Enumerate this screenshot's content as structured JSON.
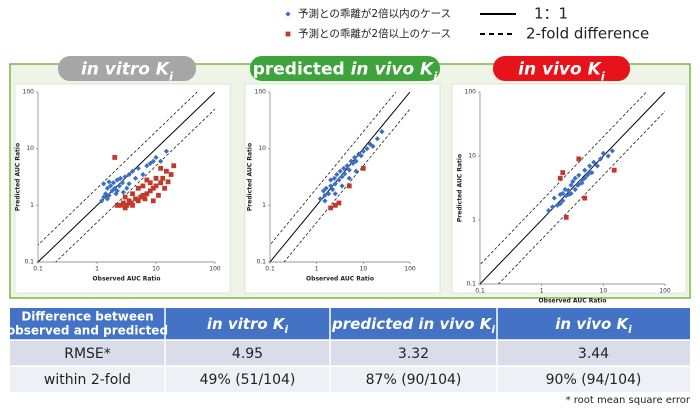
{
  "legend": {
    "items": [
      {
        "label": "予測との乖離が2倍以内のケース",
        "marker": "diamond",
        "color": "#3a6fc4"
      },
      {
        "label": "予測との乖離が2倍以上のケース",
        "marker": "square",
        "color": "#c0392b"
      },
      {
        "label": "1：1",
        "line": "solid",
        "color": "#000000"
      },
      {
        "label": "2-fold difference",
        "line": "dashed",
        "color": "#000000"
      }
    ]
  },
  "chart_data": [
    {
      "type": "scatter",
      "title_parts": [
        {
          "text": "in vitro K",
          "style": "italic"
        },
        {
          "text": "i",
          "style": "italic-sub"
        }
      ],
      "title_color": "#a6a6a6",
      "x_label": "Observed AUC Ratio",
      "y_label": "Predicted AUC Ratio",
      "log_scale": true,
      "grid": false,
      "xlim": [
        0.1,
        100
      ],
      "ylim": [
        0.1,
        100
      ],
      "xticks": [
        0.1,
        1,
        10,
        100
      ],
      "yticks": [
        0.1,
        1,
        10,
        100
      ],
      "reference_lines": [
        {
          "factor": 1,
          "style": "solid"
        },
        {
          "factor": 2,
          "style": "dashed"
        },
        {
          "factor": 0.5,
          "style": "dashed"
        }
      ],
      "series": [
        {
          "marker": "diamond",
          "color": "#3a6fc4",
          "x": [
            1.2,
            1.3,
            1.4,
            1.5,
            1.5,
            1.6,
            1.7,
            1.8,
            1.9,
            2.0,
            2.1,
            2.2,
            2.4,
            2.5,
            2.7,
            3.0,
            3.2,
            3.5,
            4.0,
            4.5,
            5,
            6,
            7,
            8,
            9,
            10,
            12,
            15,
            1.3,
            1.6,
            2.2,
            2.8,
            3.5
          ],
          "values": [
            1.2,
            1.4,
            1.6,
            1.3,
            2.0,
            1.5,
            2.2,
            1.8,
            2.5,
            2.0,
            1.6,
            2.8,
            2.2,
            3.0,
            2.5,
            3.2,
            2.0,
            3.5,
            4.0,
            3.0,
            4.5,
            3.5,
            5,
            5.5,
            6,
            7,
            6,
            9,
            2.4,
            2.6,
            1.8,
            1.7,
            2.4
          ]
        },
        {
          "marker": "square",
          "color": "#c0392b",
          "x": [
            2.2,
            2.5,
            2.8,
            3,
            3.2,
            3.5,
            3.8,
            4,
            4.5,
            5,
            5.5,
            6,
            6.5,
            7,
            8,
            9,
            10,
            11,
            12,
            13,
            15,
            18,
            20,
            3,
            4,
            5,
            6,
            8,
            10,
            14,
            2.0,
            7,
            9,
            16,
            12
          ],
          "values": [
            1.0,
            1.0,
            1.1,
            0.9,
            1.0,
            1.2,
            1.1,
            1.0,
            1.3,
            1.2,
            1.4,
            1.5,
            1.3,
            1.6,
            1.8,
            2.0,
            2.2,
            1.5,
            2.5,
            3.0,
            4.0,
            3.5,
            5.0,
            1.4,
            1.6,
            2.0,
            2.2,
            2.5,
            3.0,
            2.0,
            7.0,
            2.8,
            1.2,
            2.6,
            4.5
          ]
        }
      ]
    },
    {
      "type": "scatter",
      "title_parts": [
        {
          "text": "predicted ",
          "style": "normal"
        },
        {
          "text": "in vivo K",
          "style": "italic"
        },
        {
          "text": "i",
          "style": "italic-sub"
        }
      ],
      "title_color": "#3da33a",
      "x_label": "Observed AUC Ratio",
      "y_label": "Predicted AUC Ratio",
      "log_scale": true,
      "grid": false,
      "xlim": [
        0.1,
        100
      ],
      "ylim": [
        0.1,
        100
      ],
      "xticks": [
        0.1,
        1,
        10,
        100
      ],
      "yticks": [
        0.1,
        1,
        10,
        100
      ],
      "reference_lines": [
        {
          "factor": 1,
          "style": "solid"
        },
        {
          "factor": 2,
          "style": "dashed"
        },
        {
          "factor": 0.5,
          "style": "dashed"
        }
      ],
      "series": [
        {
          "marker": "diamond",
          "color": "#3a6fc4",
          "x": [
            1.2,
            1.4,
            1.5,
            1.6,
            1.8,
            2,
            2,
            2.2,
            2.4,
            2.5,
            2.7,
            3,
            3.2,
            3.5,
            3.8,
            4,
            4.5,
            5,
            5.5,
            6,
            6.5,
            7,
            8,
            9,
            10,
            12,
            14,
            16,
            20,
            25,
            1.5,
            2.5,
            3.5,
            5,
            7
          ],
          "values": [
            1.3,
            1.8,
            1.5,
            2.0,
            1.6,
            2.2,
            2.8,
            1.9,
            3.0,
            2.4,
            3.5,
            2.8,
            4.0,
            3.2,
            4.5,
            3.6,
            5.0,
            4.2,
            6.0,
            5.5,
            7.0,
            6.0,
            8.0,
            7.5,
            9.0,
            10,
            12,
            11,
            15,
            20,
            1.2,
            1.6,
            2.2,
            3.0,
            4.0
          ]
        },
        {
          "marker": "square",
          "color": "#c0392b",
          "x": [
            2,
            2.5,
            3,
            5,
            10
          ],
          "values": [
            0.9,
            1.0,
            1.1,
            2.2,
            4.5
          ]
        }
      ]
    },
    {
      "type": "scatter",
      "title_parts": [
        {
          "text": "in vivo K",
          "style": "italic"
        },
        {
          "text": "i",
          "style": "italic-sub"
        }
      ],
      "title_color": "#e8121b",
      "x_label": "Observed AUC Ratio",
      "y_label": "Predicted AUC Ratio",
      "log_scale": true,
      "grid": false,
      "xlim": [
        0.1,
        100
      ],
      "ylim": [
        0.1,
        100
      ],
      "xticks": [
        0.1,
        1,
        10,
        100
      ],
      "yticks": [
        0.1,
        1,
        10,
        100
      ],
      "reference_lines": [
        {
          "factor": 1,
          "style": "solid"
        },
        {
          "factor": 2,
          "style": "dashed"
        },
        {
          "factor": 0.5,
          "style": "dashed"
        }
      ],
      "series": [
        {
          "marker": "diamond",
          "color": "#3a6fc4",
          "x": [
            1.3,
            1.5,
            1.6,
            1.8,
            2,
            2,
            2.2,
            2.4,
            2.5,
            2.7,
            3,
            3,
            3.2,
            3.5,
            3.8,
            4,
            4,
            4.5,
            5,
            5,
            5.5,
            6,
            6.5,
            7,
            8,
            9,
            10,
            12,
            14,
            2.2,
            2.8,
            3.5,
            4.5,
            6
          ],
          "values": [
            1.4,
            1.6,
            2.2,
            1.7,
            2.5,
            1.8,
            2.0,
            3.0,
            2.4,
            2.9,
            3.5,
            2.6,
            4.0,
            3.0,
            3.5,
            5.0,
            3.6,
            4.2,
            6.0,
            4.5,
            5.0,
            7.0,
            5.5,
            8.0,
            7.0,
            9.0,
            11,
            10,
            12,
            2.6,
            2.5,
            4.5,
            3.8,
            5.5
          ]
        },
        {
          "marker": "square",
          "color": "#c0392b",
          "x": [
            2,
            2.2,
            4,
            15,
            2.5,
            5
          ],
          "values": [
            4.5,
            5.5,
            9,
            6,
            1.1,
            2.2
          ]
        }
      ]
    }
  ],
  "table": {
    "corner": [
      "Difference between",
      "observed and predicted"
    ],
    "columns": [
      [
        {
          "text": "in vitro K",
          "style": "italic"
        },
        {
          "text": "i",
          "style": "italic-sub"
        }
      ],
      [
        {
          "text": "predicted in vivo K",
          "style": "italic"
        },
        {
          "text": "i",
          "style": "italic-sub"
        }
      ],
      [
        {
          "text": "in vivo K",
          "style": "italic"
        },
        {
          "text": "i",
          "style": "italic-sub"
        }
      ]
    ],
    "rows": [
      [
        "RMSE*",
        "4.95",
        "3.32",
        "3.44"
      ],
      [
        "within 2-fold",
        "49% (51/104)",
        "87% (90/104)",
        "90% (94/104)"
      ]
    ]
  },
  "footnote": "* root mean square error"
}
